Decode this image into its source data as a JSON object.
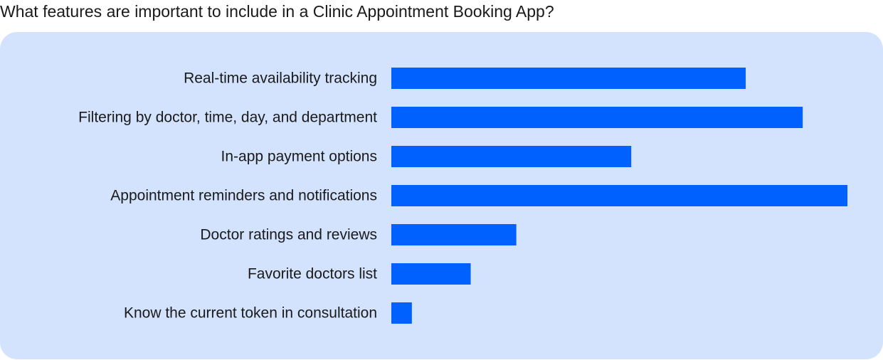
{
  "chart_data": {
    "type": "bar",
    "orientation": "horizontal",
    "title": "What features are important to include in a Clinic Appointment Booking App?",
    "categories": [
      "Real-time availability tracking",
      "Filtering by doctor, time, day, and department",
      "In-app payment options",
      "Appointment reminders and notifications",
      "Doctor ratings and reviews",
      "Favorite doctors list",
      "Know the current token in consultation"
    ],
    "values": [
      0.777,
      0.902,
      0.526,
      1.0,
      0.274,
      0.174,
      0.045
    ],
    "xlim": [
      0,
      1
    ],
    "grid": false,
    "legend": "none",
    "bar_color": "#0061fe",
    "panel_color": "#d3e3fd"
  }
}
